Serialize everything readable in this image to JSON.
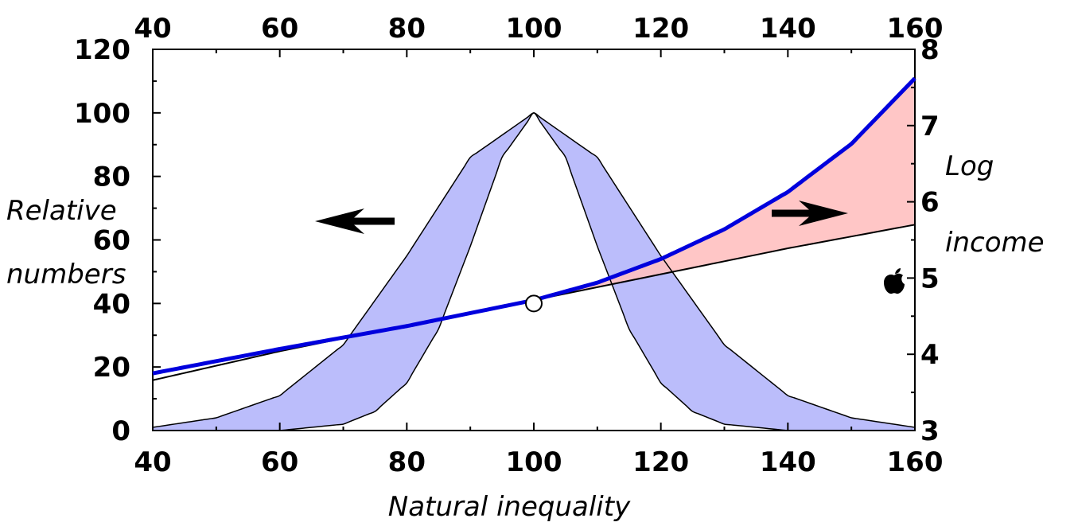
{
  "chart_data": {
    "type": "area",
    "xlabel": "Natural inequality",
    "ylabel_left": [
      "Relative",
      "numbers"
    ],
    "ylabel_right": [
      "Log",
      "income"
    ],
    "x_range": [
      40,
      160
    ],
    "y_left_range": [
      0,
      120
    ],
    "y_right_range": [
      3,
      8
    ],
    "x_ticks": [
      40,
      60,
      80,
      100,
      120,
      140,
      160
    ],
    "y_left_ticks": [
      0,
      20,
      40,
      60,
      80,
      100,
      120
    ],
    "y_right_ticks": [
      3,
      4,
      5,
      6,
      7,
      8
    ],
    "y_right_tick_labels": [
      "3",
      "4",
      "5",
      "6",
      "7",
      "8"
    ],
    "distribution_band": {
      "outer": {
        "x": [
          40,
          50,
          60,
          70,
          80,
          90,
          100,
          110,
          120,
          130,
          140,
          150,
          160
        ],
        "y": [
          1,
          4,
          11,
          27,
          55,
          86,
          100,
          86,
          55,
          27,
          11,
          4,
          1
        ]
      },
      "inner": {
        "x": [
          40,
          60,
          70,
          75,
          80,
          85,
          90,
          95,
          100,
          105,
          110,
          115,
          120,
          125,
          130,
          140,
          160
        ],
        "y": [
          0,
          0,
          2,
          6,
          15,
          32,
          58,
          86,
          100,
          86,
          58,
          32,
          15,
          6,
          2,
          0,
          0
        ]
      },
      "color": "#bbbdfb"
    },
    "series": [
      {
        "x": [
          40,
          60,
          80,
          100,
          120,
          140,
          160
        ],
        "y_log_income": [
          3.66,
          4.04,
          4.38,
          4.71,
          5.05,
          5.39,
          5.7
        ],
        "color": "#000000"
      },
      {
        "x": [
          40,
          60,
          80,
          100,
          110,
          120,
          130,
          140,
          150,
          160
        ],
        "y_log_income": [
          3.75,
          4.07,
          4.37,
          4.71,
          4.94,
          5.25,
          5.64,
          6.13,
          6.76,
          7.62
        ],
        "color": "#0000dd"
      }
    ],
    "income_gap_fill": "#ffc0c0",
    "marker": {
      "x": 100,
      "y_left": 40
    },
    "arrows": [
      "left",
      "right"
    ]
  }
}
